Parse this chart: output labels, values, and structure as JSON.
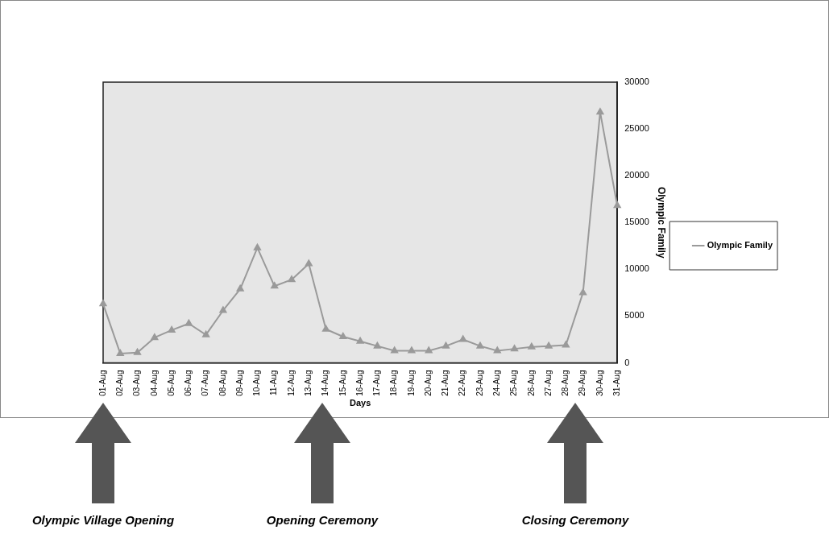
{
  "chart_data": {
    "type": "line",
    "xlabel": "Days",
    "ylabel": "Olympic Family",
    "categories": [
      "01-Aug",
      "02-Aug",
      "03-Aug",
      "04-Aug",
      "05-Aug",
      "06-Aug",
      "07-Aug",
      "08-Aug",
      "09-Aug",
      "10-Aug",
      "11-Aug",
      "12-Aug",
      "13-Aug",
      "14-Aug",
      "15-Aug",
      "16-Aug",
      "17-Aug",
      "18-Aug",
      "19-Aug",
      "20-Aug",
      "21-Aug",
      "22-Aug",
      "23-Aug",
      "24-Aug",
      "25-Aug",
      "26-Aug",
      "27-Aug",
      "28-Aug",
      "29-Aug",
      "30-Aug",
      "31-Aug"
    ],
    "series": [
      {
        "name": "Olympic Family",
        "color": "#9a9a9a",
        "values": [
          6300,
          1000,
          1100,
          2700,
          3500,
          4200,
          3000,
          5600,
          7900,
          12300,
          8200,
          8900,
          10600,
          3600,
          2800,
          2300,
          1800,
          1300,
          1300,
          1300,
          1800,
          2500,
          1800,
          1300,
          1500,
          1700,
          1800,
          1900,
          7500,
          26800,
          16800
        ]
      }
    ],
    "ylim": [
      0,
      30000
    ],
    "yticks": [
      0,
      5000,
      10000,
      15000,
      20000,
      25000,
      30000
    ],
    "grid": false,
    "legend": "right",
    "marker": "triangle",
    "line_style": "solid",
    "annotations": [
      "Olympic Village Opening",
      "Opening Ceremony",
      "Closing Ceremony"
    ]
  }
}
